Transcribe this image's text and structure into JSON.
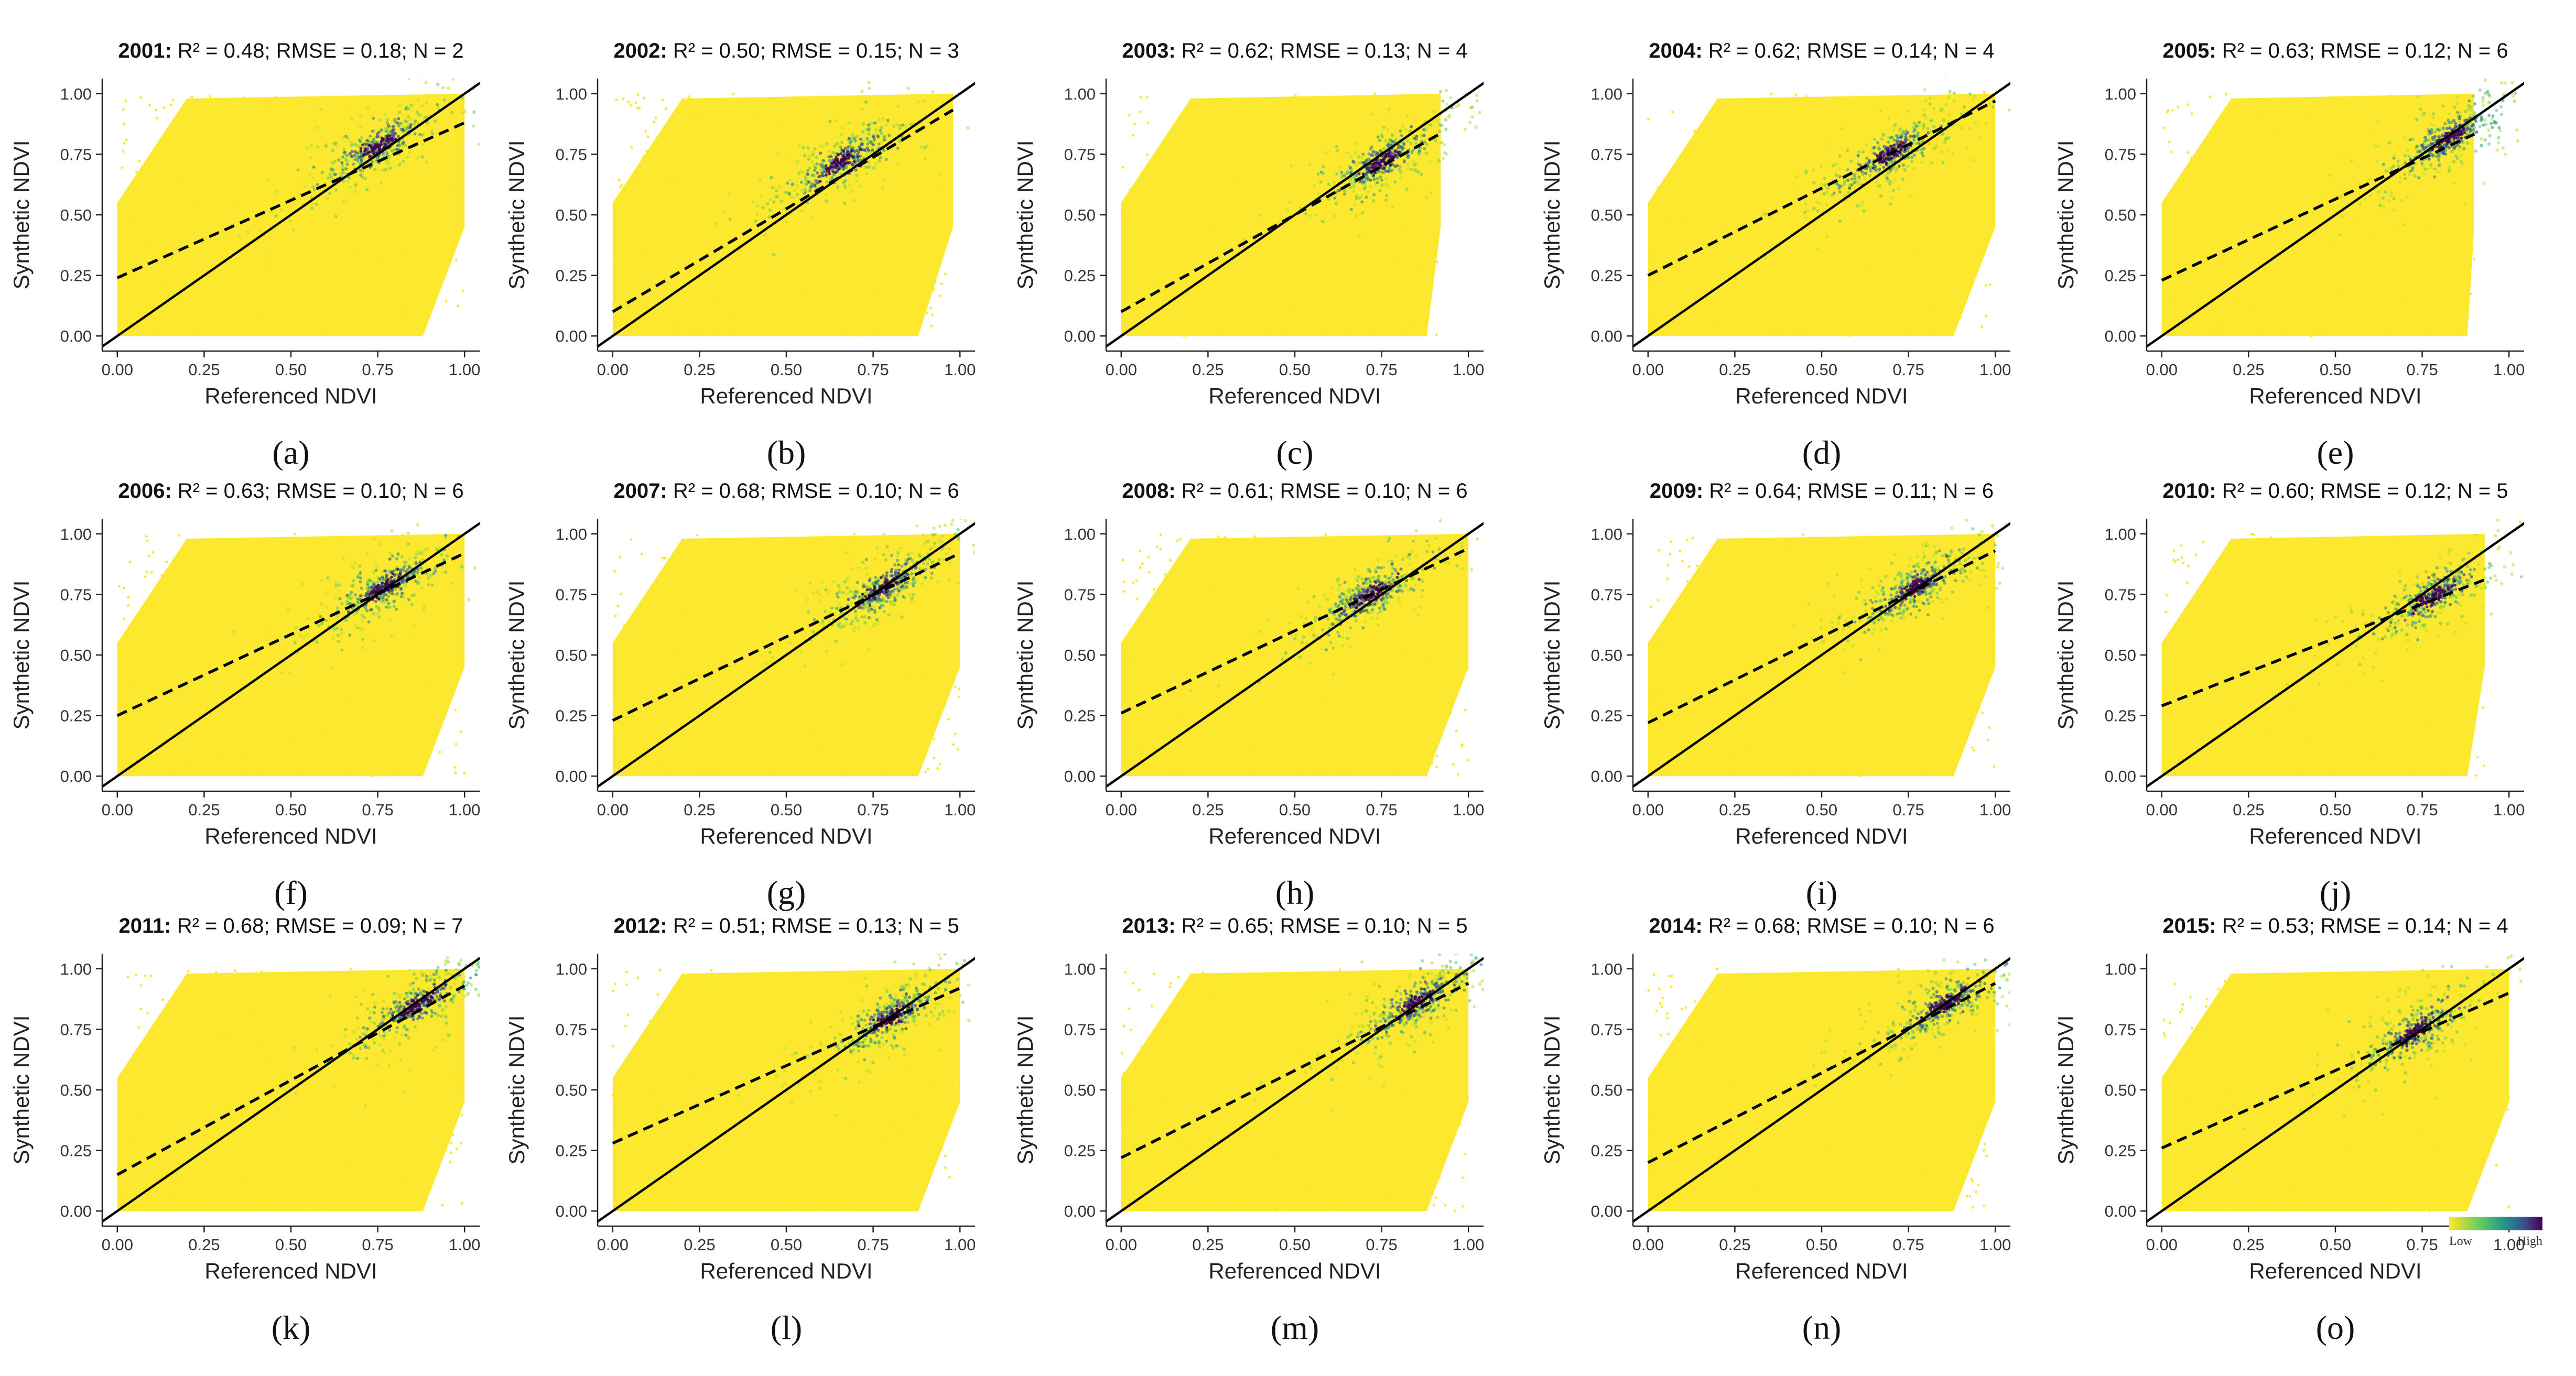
{
  "figure": {
    "xlabel": "Referenced NDVI",
    "ylabel": "Synthetic NDVI",
    "tick_labels": [
      "0.00",
      "0.25",
      "0.50",
      "0.75",
      "1.00"
    ],
    "legend": {
      "low": "Low",
      "high": "High"
    },
    "colors": {
      "low": "#fde725",
      "mid": "#21918c",
      "high": "#440154",
      "line": "#000000"
    }
  },
  "chart_data": [
    {
      "label": "(a)",
      "year": "2001",
      "stats": "R² = 0.48; RMSE = 0.18; N = 2",
      "type": "scatter",
      "xlim": [
        0,
        1
      ],
      "ylim": [
        0,
        1
      ],
      "fit_line": {
        "intercept": 0.24,
        "slope": 0.64
      },
      "one_to_one": true,
      "density_center": [
        0.75,
        0.78
      ],
      "x_range": [
        0,
        1
      ],
      "y_range": [
        0,
        1
      ],
      "x_cut": [
        0.87,
        0.3
      ]
    },
    {
      "label": "(b)",
      "year": "2002",
      "stats": "R² = 0.50; RMSE = 0.15; N = 3",
      "type": "scatter",
      "xlim": [
        0,
        1
      ],
      "ylim": [
        0,
        1
      ],
      "fit_line": {
        "intercept": 0.1,
        "slope": 0.85
      },
      "one_to_one": true,
      "density_center": [
        0.66,
        0.72
      ],
      "x_range": [
        0,
        0.98
      ],
      "y_range": [
        0,
        1
      ]
    },
    {
      "label": "(c)",
      "year": "2003",
      "stats": "R² = 0.62; RMSE = 0.13; N = 4",
      "type": "scatter",
      "xlim": [
        0,
        1
      ],
      "ylim": [
        0,
        1
      ],
      "fit_line": {
        "intercept": 0.1,
        "slope": 0.8
      },
      "one_to_one": true,
      "density_center": [
        0.75,
        0.72
      ],
      "x_range": [
        0,
        0.92
      ],
      "y_range": [
        0,
        1
      ]
    },
    {
      "label": "(d)",
      "year": "2004",
      "stats": "R² = 0.62; RMSE = 0.14; N = 4",
      "type": "scatter",
      "xlim": [
        0,
        1
      ],
      "ylim": [
        0,
        1
      ],
      "fit_line": {
        "intercept": 0.25,
        "slope": 0.72
      },
      "one_to_one": true,
      "density_center": [
        0.7,
        0.75
      ],
      "x_range": [
        0,
        1
      ],
      "y_range": [
        0,
        1
      ]
    },
    {
      "label": "(e)",
      "year": "2005",
      "stats": "R² = 0.63; RMSE = 0.12; N = 6",
      "type": "scatter",
      "xlim": [
        0,
        1
      ],
      "ylim": [
        0,
        1
      ],
      "fit_line": {
        "intercept": 0.23,
        "slope": 0.67
      },
      "one_to_one": true,
      "density_center": [
        0.83,
        0.82
      ],
      "x_range": [
        0,
        0.9
      ],
      "y_range": [
        0,
        1
      ]
    },
    {
      "label": "(f)",
      "year": "2006",
      "stats": "R² = 0.63; RMSE = 0.10; N = 6",
      "type": "scatter",
      "xlim": [
        0,
        1
      ],
      "ylim": [
        0,
        1
      ],
      "fit_line": {
        "intercept": 0.25,
        "slope": 0.67
      },
      "one_to_one": true,
      "density_center": [
        0.77,
        0.78
      ],
      "x_range": [
        0,
        1
      ],
      "y_range": [
        0,
        1
      ]
    },
    {
      "label": "(g)",
      "year": "2007",
      "stats": "R² = 0.68; RMSE = 0.10; N = 6",
      "type": "scatter",
      "xlim": [
        0,
        1
      ],
      "ylim": [
        0,
        1
      ],
      "fit_line": {
        "intercept": 0.23,
        "slope": 0.69
      },
      "one_to_one": true,
      "density_center": [
        0.78,
        0.78
      ],
      "x_range": [
        0,
        1
      ],
      "y_range": [
        0,
        1
      ]
    },
    {
      "label": "(h)",
      "year": "2008",
      "stats": "R² = 0.61; RMSE = 0.10; N = 6",
      "type": "scatter",
      "xlim": [
        0,
        1
      ],
      "ylim": [
        0,
        1
      ],
      "fit_line": {
        "intercept": 0.26,
        "slope": 0.68
      },
      "one_to_one": true,
      "density_center": [
        0.72,
        0.75
      ],
      "x_range": [
        0,
        1
      ],
      "y_range": [
        0,
        1
      ]
    },
    {
      "label": "(i)",
      "year": "2009",
      "stats": "R² = 0.64; RMSE = 0.11; N = 6",
      "type": "scatter",
      "xlim": [
        0,
        1
      ],
      "ylim": [
        0,
        1
      ],
      "fit_line": {
        "intercept": 0.22,
        "slope": 0.71
      },
      "one_to_one": true,
      "density_center": [
        0.77,
        0.78
      ],
      "x_range": [
        0,
        1
      ],
      "y_range": [
        0,
        1
      ]
    },
    {
      "label": "(j)",
      "year": "2010",
      "stats": "R² = 0.60; RMSE = 0.12; N = 5",
      "type": "scatter",
      "xlim": [
        0,
        1
      ],
      "ylim": [
        0,
        1
      ],
      "fit_line": {
        "intercept": 0.29,
        "slope": 0.56
      },
      "one_to_one": true,
      "density_center": [
        0.78,
        0.74
      ],
      "x_range": [
        0,
        0.93
      ],
      "y_range": [
        0,
        1
      ]
    },
    {
      "label": "(k)",
      "year": "2011",
      "stats": "R² = 0.68; RMSE = 0.09; N = 7",
      "type": "scatter",
      "xlim": [
        0,
        1
      ],
      "ylim": [
        0,
        1
      ],
      "fit_line": {
        "intercept": 0.15,
        "slope": 0.78
      },
      "one_to_one": true,
      "density_center": [
        0.86,
        0.85
      ],
      "x_range": [
        0,
        1
      ],
      "y_range": [
        0,
        1
      ]
    },
    {
      "label": "(l)",
      "year": "2012",
      "stats": "R² = 0.51; RMSE = 0.13; N = 5",
      "type": "scatter",
      "xlim": [
        0,
        1
      ],
      "ylim": [
        0,
        1
      ],
      "fit_line": {
        "intercept": 0.28,
        "slope": 0.64
      },
      "one_to_one": true,
      "density_center": [
        0.8,
        0.8
      ],
      "x_range": [
        0,
        1
      ],
      "y_range": [
        0,
        1
      ]
    },
    {
      "label": "(m)",
      "year": "2013",
      "stats": "R² = 0.65; RMSE = 0.10; N = 5",
      "type": "scatter",
      "xlim": [
        0,
        1
      ],
      "ylim": [
        0,
        1
      ],
      "fit_line": {
        "intercept": 0.22,
        "slope": 0.72
      },
      "one_to_one": true,
      "density_center": [
        0.85,
        0.86
      ],
      "x_range": [
        0,
        1
      ],
      "y_range": [
        0,
        1
      ]
    },
    {
      "label": "(n)",
      "year": "2014",
      "stats": "R² = 0.68; RMSE = 0.10; N = 6",
      "type": "scatter",
      "xlim": [
        0,
        1
      ],
      "ylim": [
        0,
        1
      ],
      "fit_line": {
        "intercept": 0.2,
        "slope": 0.74
      },
      "one_to_one": true,
      "density_center": [
        0.86,
        0.86
      ],
      "x_range": [
        0,
        1
      ],
      "y_range": [
        0,
        1
      ]
    },
    {
      "label": "(o)",
      "year": "2015",
      "stats": "R² = 0.53; RMSE = 0.14; N = 4",
      "type": "scatter",
      "xlim": [
        0,
        1
      ],
      "ylim": [
        0,
        1
      ],
      "fit_line": {
        "intercept": 0.26,
        "slope": 0.64
      },
      "one_to_one": true,
      "density_center": [
        0.73,
        0.74
      ],
      "x_range": [
        0,
        1
      ],
      "y_range": [
        0,
        1
      ]
    }
  ]
}
